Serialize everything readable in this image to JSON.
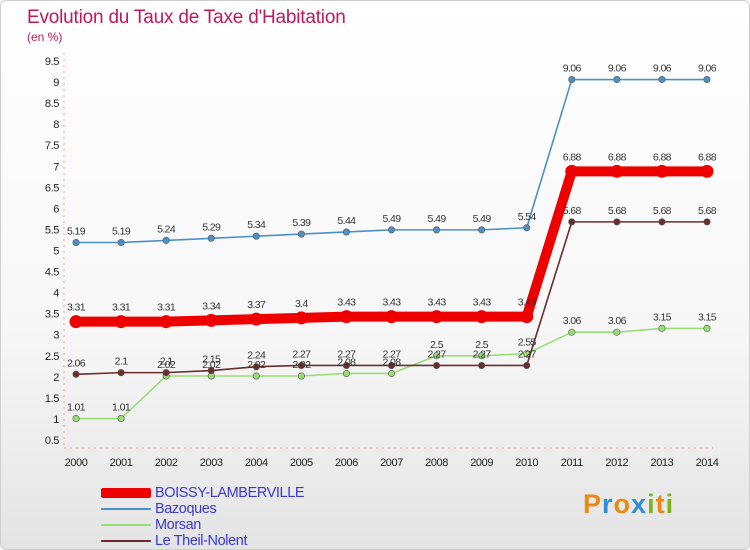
{
  "header": {
    "title": "Evolution du Taux de Taxe d'Habitation",
    "subtitle": "(en %)"
  },
  "brand": {
    "letters": [
      "P",
      "r",
      "o",
      "x",
      "i",
      "t",
      "i"
    ],
    "colors": [
      "#e88a14",
      "#2f8fd4",
      "#e88a14",
      "#2f8fd4",
      "#7ab51d",
      "#e88a14",
      "#7ab51d"
    ]
  },
  "chart_data": {
    "type": "line",
    "title": "Evolution du Taux de Taxe d'Habitation",
    "ylabel": "(en %)",
    "xlabel": "",
    "ylim": [
      0.5,
      9.5
    ],
    "grid": false,
    "legend_position": "bottom-left",
    "categories": [
      "2000",
      "2001",
      "2002",
      "2003",
      "2004",
      "2005",
      "2006",
      "2007",
      "2008",
      "2009",
      "2010",
      "2011",
      "2012",
      "2013",
      "2014"
    ],
    "yticks": [
      "0.5",
      "1",
      "1.5",
      "2",
      "2.5",
      "3",
      "3.5",
      "4",
      "4.5",
      "5",
      "5.5",
      "6",
      "6.5",
      "7",
      "7.5",
      "8",
      "8.5",
      "9",
      "9.5"
    ],
    "series": [
      {
        "name": "BOISSY-LAMBERVILLE",
        "color": "#ee0000",
        "emphasis": true,
        "values": [
          3.31,
          3.31,
          3.31,
          3.34,
          3.37,
          3.4,
          3.43,
          3.43,
          3.43,
          3.43,
          3.43,
          6.88,
          6.88,
          6.88,
          6.88
        ]
      },
      {
        "name": "Bazoques",
        "color": "#4d90c6",
        "emphasis": false,
        "values": [
          5.19,
          5.19,
          5.24,
          5.29,
          5.34,
          5.39,
          5.44,
          5.49,
          5.49,
          5.49,
          5.54,
          9.06,
          9.06,
          9.06,
          9.06
        ]
      },
      {
        "name": "Morsan",
        "color": "#99dd77",
        "emphasis": false,
        "values": [
          1.01,
          1.01,
          2.02,
          2.02,
          2.02,
          2.02,
          2.08,
          2.08,
          2.5,
          2.5,
          2.55,
          3.06,
          3.06,
          3.15,
          3.15
        ]
      },
      {
        "name": "Le Theil-Nolent",
        "color": "#6b2d2d",
        "emphasis": false,
        "values": [
          2.06,
          2.1,
          2.1,
          2.15,
          2.24,
          2.27,
          2.27,
          2.27,
          2.27,
          2.27,
          2.27,
          5.68,
          5.68,
          5.68,
          5.68
        ]
      }
    ]
  }
}
